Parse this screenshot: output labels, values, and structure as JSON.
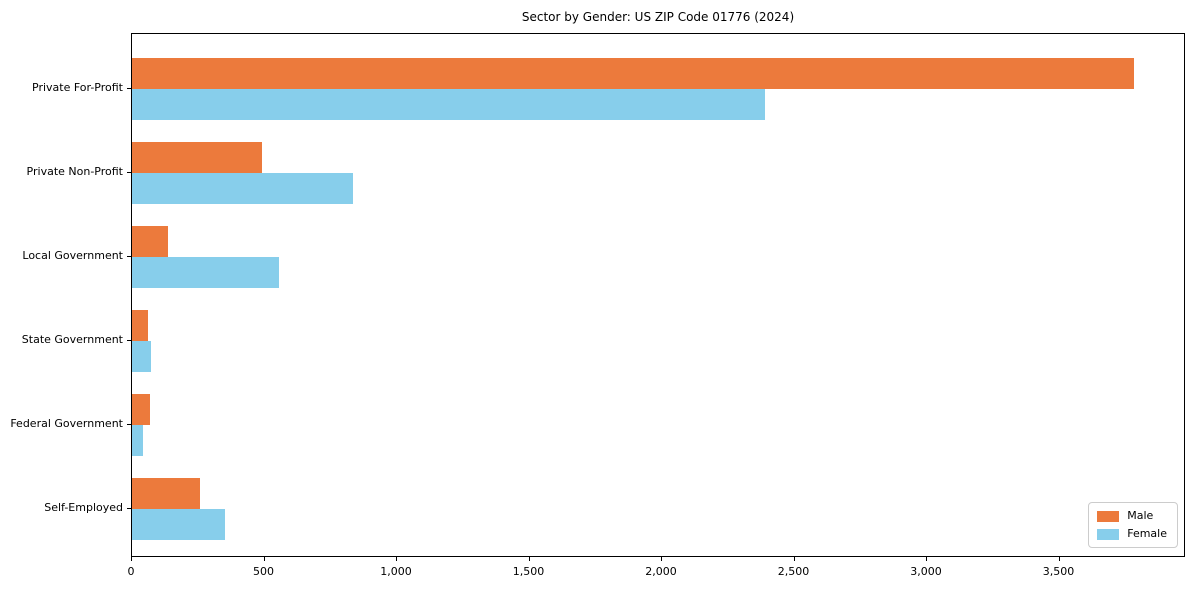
{
  "title": "Sector by Gender: US ZIP Code 01776 (2024)",
  "chart_data": {
    "type": "bar",
    "orientation": "horizontal",
    "title": "Sector by Gender: US ZIP Code 01776 (2024)",
    "categories": [
      "Private For-Profit",
      "Private Non-Profit",
      "Local Government",
      "State Government",
      "Federal Government",
      "Self-Employed"
    ],
    "series": [
      {
        "name": "Male",
        "color": "#EC7A3C",
        "values": [
          3780,
          490,
          135,
          62,
          66,
          258
        ]
      },
      {
        "name": "Female",
        "color": "#87CEEB",
        "values": [
          2390,
          835,
          555,
          70,
          42,
          350
        ]
      }
    ],
    "xlabel": "",
    "ylabel": "",
    "xlim": [
      0,
      3970
    ],
    "xticks": [
      0,
      500,
      1000,
      1500,
      2000,
      2500,
      3000,
      3500
    ],
    "xtick_labels": [
      "0",
      "500",
      "1,000",
      "1,500",
      "2,000",
      "2,500",
      "3,000",
      "3,500"
    ],
    "grid": false,
    "legend_position": "lower right"
  },
  "legend": {
    "items": [
      {
        "label": "Male",
        "color": "#EC7A3C"
      },
      {
        "label": "Female",
        "color": "#87CEEB"
      }
    ]
  }
}
